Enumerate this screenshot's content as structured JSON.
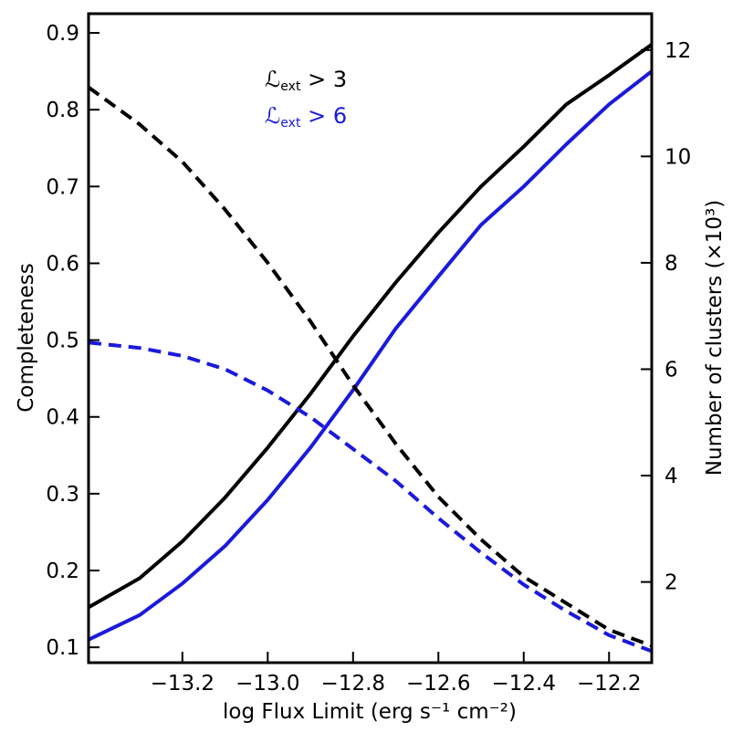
{
  "chart_data": {
    "type": "line",
    "xlabel": "log Flux Limit (erg s⁻¹ cm⁻²)",
    "ylabel_left": "Completeness",
    "ylabel_right": "Number of clusters (×10³)",
    "xlim": [
      -13.42,
      -12.1
    ],
    "ylim_left": [
      0.08,
      0.925
    ],
    "ylim_right": [
      0.483,
      12.683
    ],
    "x_ticks": [
      -13.2,
      -13.0,
      -12.8,
      -12.6,
      -12.4,
      -12.2
    ],
    "x_tick_labels": [
      "−13.2",
      "−13.0",
      "−12.8",
      "−12.6",
      "−12.4",
      "−12.2"
    ],
    "y_left_ticks": [
      0.1,
      0.2,
      0.3,
      0.4,
      0.5,
      0.6,
      0.7,
      0.8,
      0.9
    ],
    "y_left_tick_labels": [
      "0.1",
      "0.2",
      "0.3",
      "0.4",
      "0.5",
      "0.6",
      "0.7",
      "0.8",
      "0.9"
    ],
    "y_right_ticks": [
      2,
      4,
      6,
      8,
      10,
      12
    ],
    "y_right_tick_labels": [
      "2",
      "4",
      "6",
      "8",
      "10",
      "12"
    ],
    "grid": false,
    "legend": {
      "placement": "top-left",
      "entries": [
        {
          "symbol": "ℒ",
          "sub": "ext",
          "relation": " > 3",
          "color": "#000000"
        },
        {
          "symbol": "ℒ",
          "sub": "ext",
          "relation": " > 6",
          "color": "#1a1adc"
        }
      ]
    },
    "x": [
      -13.42,
      -13.3,
      -13.2,
      -13.1,
      -13.0,
      -12.9,
      -12.8,
      -12.7,
      -12.6,
      -12.5,
      -12.4,
      -12.3,
      -12.2,
      -12.1
    ],
    "series": [
      {
        "axis": "left",
        "style": "solid",
        "color": "#000000",
        "values": [
          0.152,
          0.19,
          0.238,
          0.295,
          0.36,
          0.43,
          0.505,
          0.575,
          0.64,
          0.7,
          0.752,
          0.807,
          0.845,
          0.885
        ]
      },
      {
        "axis": "left",
        "style": "solid",
        "color": "#1a1adc",
        "values": [
          0.11,
          0.142,
          0.183,
          0.232,
          0.292,
          0.36,
          0.435,
          0.515,
          0.583,
          0.65,
          0.7,
          0.755,
          0.807,
          0.85
        ]
      },
      {
        "axis": "right",
        "style": "dashed",
        "color": "#000000",
        "values": [
          11.3,
          10.6,
          9.9,
          9.0,
          8.0,
          6.9,
          5.7,
          4.6,
          3.6,
          2.8,
          2.1,
          1.6,
          1.1,
          0.8
        ]
      },
      {
        "axis": "right",
        "style": "dashed",
        "color": "#1a1adc",
        "values": [
          6.5,
          6.4,
          6.25,
          6.0,
          5.6,
          5.1,
          4.5,
          3.9,
          3.2,
          2.55,
          1.95,
          1.45,
          1.0,
          0.7
        ]
      }
    ]
  }
}
